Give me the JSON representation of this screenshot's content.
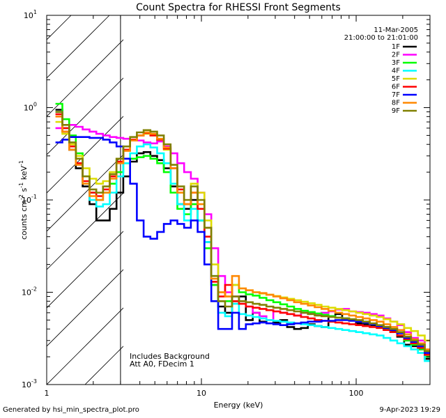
{
  "chart_data": {
    "type": "line",
    "title": "Count Spectra for RHESSI Front Segments",
    "xlabel": "Energy (keV)",
    "ylabel_parts": {
      "base": "counts cm",
      "exp1": "-2",
      "mid1": " s",
      "exp2": "-1",
      "mid2": " keV",
      "exp3": "-1"
    },
    "xscale": "log",
    "yscale": "log",
    "xlim": [
      1,
      300
    ],
    "ylim": [
      0.001,
      10
    ],
    "x_ticks": [
      {
        "value": 1,
        "label": "1"
      },
      {
        "value": 10,
        "label": "10"
      },
      {
        "value": 100,
        "label": "100"
      }
    ],
    "y_ticks": [
      {
        "value": 0.001,
        "base": "10",
        "exp": "-3"
      },
      {
        "value": 0.01,
        "base": "10",
        "exp": "-2"
      },
      {
        "value": 0.1,
        "base": "10",
        "exp": "-1"
      },
      {
        "value": 1,
        "base": "10",
        "exp": "0"
      },
      {
        "value": 10,
        "base": "10",
        "exp": "1"
      }
    ],
    "shaded_region": {
      "x_from": 1,
      "x_to": 3,
      "style": "hatched"
    },
    "date": "11-Mar-2005",
    "time_range": "21:00:00 to 21:01:00",
    "annotations": [
      "Includes Background",
      "Att A0, FDecim 1"
    ],
    "legend_position": "top-right",
    "energy_bins": [
      1.2,
      1.33,
      1.47,
      1.62,
      1.8,
      1.99,
      2.2,
      2.43,
      2.69,
      2.97,
      3.29,
      3.64,
      4.02,
      4.45,
      4.92,
      5.44,
      6.01,
      6.65,
      7.35,
      8.13,
      8.99,
      9.94,
      11,
      12.2,
      13.5,
      15,
      16.6,
      18.4,
      20.4,
      22.6,
      25,
      27.7,
      30.7,
      34,
      37.7,
      41.8,
      46.3,
      51.3,
      56.8,
      62.9,
      69.7,
      77.2,
      85.5,
      94.7,
      105,
      116,
      129,
      143,
      158,
      175,
      194,
      215,
      238,
      264,
      292
    ],
    "series": [
      {
        "name": "1F",
        "color": "#000000",
        "values": [
          0.95,
          0.55,
          0.35,
          0.22,
          0.14,
          0.09,
          0.06,
          0.06,
          0.08,
          0.12,
          0.18,
          0.26,
          0.32,
          0.33,
          0.3,
          0.27,
          0.22,
          0.14,
          0.09,
          0.08,
          0.1,
          0.06,
          0.035,
          0.012,
          0.007,
          0.006,
          0.008,
          0.009,
          0.005,
          0.006,
          0.0048,
          0.0046,
          0.0047,
          0.005,
          0.0042,
          0.004,
          0.0041,
          0.0045,
          0.0043,
          0.0042,
          0.0055,
          0.0058,
          0.0052,
          0.005,
          0.0046,
          0.0045,
          0.0044,
          0.0043,
          0.0042,
          0.0038,
          0.0033,
          0.0027,
          0.0026,
          0.0024,
          0.0019
        ]
      },
      {
        "name": "2F",
        "color": "#ff00ff",
        "values": [
          0.6,
          0.55,
          0.65,
          0.62,
          0.58,
          0.55,
          0.52,
          0.5,
          0.48,
          0.47,
          0.46,
          0.45,
          0.44,
          0.42,
          0.41,
          0.43,
          0.38,
          0.32,
          0.25,
          0.2,
          0.17,
          0.12,
          0.07,
          0.03,
          0.015,
          0.01,
          0.009,
          0.008,
          0.007,
          0.006,
          0.0055,
          0.005,
          0.0062,
          0.006,
          0.0058,
          0.0056,
          0.006,
          0.0059,
          0.0058,
          0.006,
          0.0062,
          0.0065,
          0.0066,
          0.0062,
          0.0061,
          0.006,
          0.0058,
          0.0056,
          0.0052,
          0.0048,
          0.0044,
          0.0037,
          0.0032,
          0.003,
          0.0022
        ]
      },
      {
        "name": "3F",
        "color": "#00ff00",
        "values": [
          1.1,
          0.75,
          0.5,
          0.32,
          0.18,
          0.12,
          0.1,
          0.12,
          0.15,
          0.2,
          0.25,
          0.28,
          0.29,
          0.3,
          0.28,
          0.25,
          0.2,
          0.12,
          0.08,
          0.07,
          0.09,
          0.06,
          0.03,
          0.012,
          0.008,
          0.008,
          0.012,
          0.01,
          0.0095,
          0.0092,
          0.0087,
          0.0082,
          0.0078,
          0.0074,
          0.007,
          0.0066,
          0.0063,
          0.0061,
          0.0059,
          0.0057,
          0.0055,
          0.0053,
          0.0052,
          0.005,
          0.0049,
          0.0047,
          0.0045,
          0.0043,
          0.004,
          0.0037,
          0.0034,
          0.003,
          0.0027,
          0.0024,
          0.002
        ]
      },
      {
        "name": "4F",
        "color": "#00ffff",
        "values": [
          0.9,
          0.6,
          0.38,
          0.25,
          0.15,
          0.1,
          0.085,
          0.09,
          0.12,
          0.18,
          0.25,
          0.32,
          0.38,
          0.4,
          0.37,
          0.32,
          0.25,
          0.15,
          0.09,
          0.06,
          0.08,
          0.06,
          0.035,
          0.015,
          0.006,
          0.0055,
          0.0075,
          0.0058,
          0.0056,
          0.0054,
          0.0052,
          0.005,
          0.0049,
          0.0048,
          0.0047,
          0.0046,
          0.0045,
          0.0044,
          0.0043,
          0.0042,
          0.0041,
          0.004,
          0.0039,
          0.0038,
          0.0037,
          0.0036,
          0.0035,
          0.0034,
          0.0032,
          0.003,
          0.0028,
          0.0026,
          0.0024,
          0.0022,
          0.0018
        ]
      },
      {
        "name": "5F",
        "color": "#dddd00",
        "values": [
          0.7,
          0.52,
          0.4,
          0.3,
          0.22,
          0.17,
          0.15,
          0.16,
          0.2,
          0.28,
          0.35,
          0.45,
          0.5,
          0.52,
          0.5,
          0.45,
          0.35,
          0.22,
          0.12,
          0.09,
          0.15,
          0.12,
          0.06,
          0.02,
          0.01,
          0.009,
          0.012,
          0.011,
          0.0105,
          0.01,
          0.0097,
          0.0094,
          0.0091,
          0.0088,
          0.0085,
          0.0082,
          0.0079,
          0.0076,
          0.0073,
          0.007,
          0.0068,
          0.0066,
          0.0064,
          0.0062,
          0.006,
          0.0058,
          0.0056,
          0.0054,
          0.0051,
          0.0048,
          0.0045,
          0.0041,
          0.0038,
          0.0034,
          0.003
        ]
      },
      {
        "name": "6F",
        "color": "#ff0000",
        "values": [
          0.85,
          0.6,
          0.38,
          0.25,
          0.16,
          0.12,
          0.11,
          0.13,
          0.18,
          0.26,
          0.35,
          0.45,
          0.5,
          0.53,
          0.5,
          0.45,
          0.36,
          0.22,
          0.13,
          0.09,
          0.12,
          0.08,
          0.04,
          0.013,
          0.009,
          0.012,
          0.008,
          0.0075,
          0.007,
          0.0068,
          0.0066,
          0.0064,
          0.0062,
          0.006,
          0.0058,
          0.0056,
          0.0054,
          0.0052,
          0.005,
          0.0049,
          0.0048,
          0.0047,
          0.0046,
          0.0045,
          0.0044,
          0.0043,
          0.0042,
          0.0041,
          0.0039,
          0.0037,
          0.0034,
          0.0031,
          0.0028,
          0.0025,
          0.0021
        ]
      },
      {
        "name": "7F",
        "color": "#0000ff",
        "values": [
          0.42,
          0.45,
          0.48,
          0.48,
          0.48,
          0.47,
          0.47,
          0.45,
          0.42,
          0.38,
          0.28,
          0.15,
          0.06,
          0.04,
          0.038,
          0.045,
          0.055,
          0.06,
          0.055,
          0.05,
          0.06,
          0.045,
          0.02,
          0.008,
          0.004,
          0.004,
          0.006,
          0.004,
          0.0045,
          0.0046,
          0.0047,
          0.0046,
          0.0045,
          0.0044,
          0.0045,
          0.0046,
          0.0047,
          0.0048,
          0.0048,
          0.0049,
          0.0049,
          0.005,
          0.005,
          0.0049,
          0.0048,
          0.0047,
          0.0045,
          0.0043,
          0.0041,
          0.0039,
          0.0036,
          0.0032,
          0.0029,
          0.0026,
          0.0022
        ]
      },
      {
        "name": "8F",
        "color": "#ff8800",
        "values": [
          0.8,
          0.55,
          0.35,
          0.24,
          0.15,
          0.11,
          0.1,
          0.12,
          0.17,
          0.25,
          0.34,
          0.44,
          0.5,
          0.54,
          0.52,
          0.46,
          0.37,
          0.22,
          0.12,
          0.09,
          0.12,
          0.09,
          0.05,
          0.014,
          0.01,
          0.009,
          0.015,
          0.011,
          0.0105,
          0.01,
          0.0098,
          0.0094,
          0.009,
          0.0086,
          0.0082,
          0.0078,
          0.0075,
          0.0072,
          0.0069,
          0.0066,
          0.0063,
          0.006,
          0.0058,
          0.0056,
          0.0054,
          0.0052,
          0.005,
          0.0048,
          0.0045,
          0.0042,
          0.0039,
          0.0035,
          0.0031,
          0.0028,
          0.0024
        ]
      },
      {
        "name": "9F",
        "color": "#808000",
        "values": [
          0.9,
          0.65,
          0.42,
          0.28,
          0.18,
          0.13,
          0.12,
          0.14,
          0.19,
          0.28,
          0.38,
          0.48,
          0.54,
          0.57,
          0.55,
          0.5,
          0.4,
          0.24,
          0.14,
          0.1,
          0.14,
          0.1,
          0.05,
          0.015,
          0.008,
          0.007,
          0.009,
          0.008,
          0.0078,
          0.0075,
          0.0073,
          0.007,
          0.0068,
          0.0066,
          0.0064,
          0.0062,
          0.006,
          0.0058,
          0.0056,
          0.0055,
          0.0054,
          0.0053,
          0.0052,
          0.0051,
          0.005,
          0.0048,
          0.0046,
          0.0044,
          0.0042,
          0.004,
          0.0037,
          0.0033,
          0.003,
          0.0027,
          0.0023
        ]
      }
    ]
  },
  "footer": {
    "left": "Generated by hsi_min_spectra_plot.pro",
    "right": "9-Apr-2023 19:29"
  }
}
